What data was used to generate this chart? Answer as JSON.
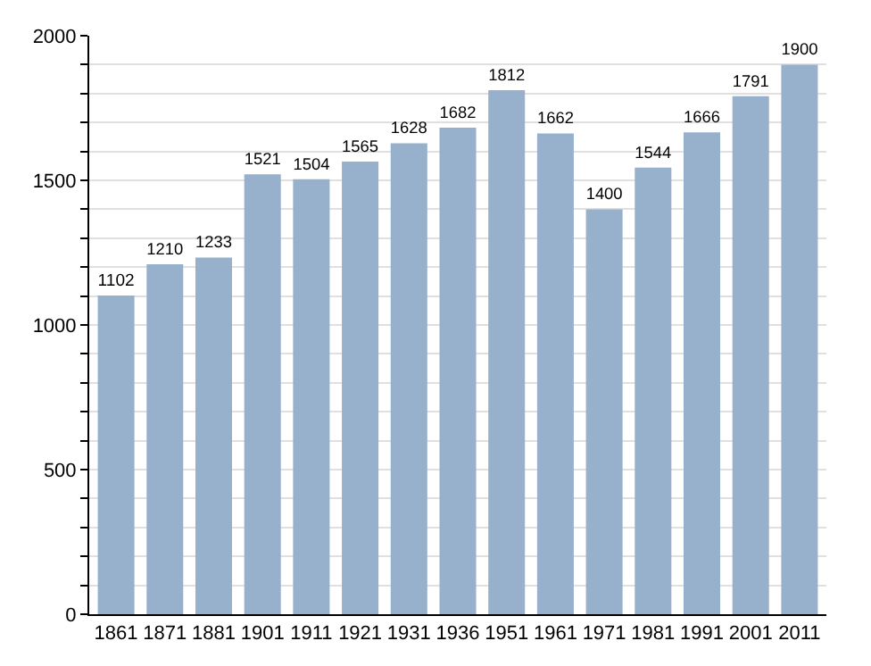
{
  "chart_data": {
    "type": "bar",
    "categories": [
      "1861",
      "1871",
      "1881",
      "1901",
      "1911",
      "1921",
      "1931",
      "1936",
      "1951",
      "1961",
      "1971",
      "1981",
      "1991",
      "2001",
      "2011"
    ],
    "values": [
      1102,
      1210,
      1233,
      1521,
      1504,
      1565,
      1628,
      1682,
      1812,
      1662,
      1400,
      1544,
      1666,
      1791,
      1900
    ],
    "color": "#97b0cc",
    "data_labels": true,
    "ylim": [
      0,
      2000
    ],
    "yticks": [
      0,
      {
        "value": 100,
        "label": null
      },
      {
        "value": 200,
        "label": null
      },
      {
        "value": 300,
        "label": null
      },
      {
        "value": 400,
        "label": null
      },
      500,
      {
        "value": 600,
        "label": null
      },
      {
        "value": 700,
        "label": null
      },
      {
        "value": 800,
        "label": null
      },
      {
        "value": 900,
        "label": null
      },
      1000,
      {
        "value": 1100,
        "label": null
      },
      {
        "value": 1200,
        "label": null
      },
      {
        "value": 1300,
        "label": null
      },
      {
        "value": 1400,
        "label": null
      },
      1500,
      {
        "value": 1600,
        "label": null
      },
      {
        "value": 1700,
        "label": null
      },
      {
        "value": 1800,
        "label": null
      },
      {
        "value": 1900,
        "label": null
      },
      2000
    ],
    "grid": "y"
  }
}
